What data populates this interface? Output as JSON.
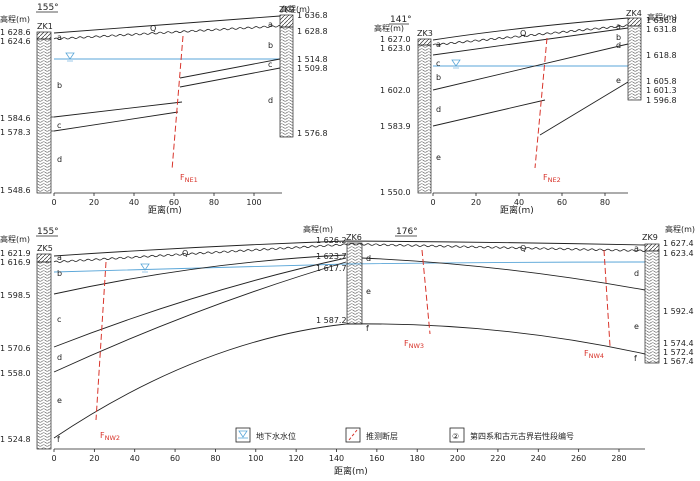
{
  "legend": {
    "water_level": "地下水水位",
    "fault": "推测断层",
    "layer_code_symbol": "②",
    "layer_code": "第四系和古元古界岩性段编号"
  },
  "sections": [
    {
      "id": "A",
      "direction": "155°",
      "ylabel": "高程(m)",
      "xlabel": "距离(m)",
      "xticks": [
        "0",
        "20",
        "40",
        "60",
        "80",
        "100"
      ],
      "boreholes": [
        {
          "name": "ZK1",
          "labels": [
            "1 628.6",
            "1 624.6",
            "1 584.6",
            "1 578.3",
            "1 548.6"
          ]
        },
        {
          "name": "ZK2",
          "labels": [
            "1 636.8",
            "1 628.8",
            "1 514.8",
            "1 509.8",
            "1 576.8"
          ]
        }
      ],
      "layers_left": [
        "a",
        "b",
        "c",
        "d"
      ],
      "layers_right": [
        "a",
        "b",
        "c",
        "d"
      ],
      "q_label": "Q",
      "fault": {
        "main": "F",
        "sub": "NE1"
      }
    },
    {
      "id": "B",
      "direction": "141°",
      "ylabel": "高程(m)",
      "xlabel": "距离(m)",
      "xticks": [
        "0",
        "20",
        "40",
        "60",
        "80"
      ],
      "boreholes": [
        {
          "name": "ZK3",
          "labels": [
            "1 627.0",
            "1 623.0",
            "1 602.0",
            "1 583.9",
            "1 550.0"
          ]
        },
        {
          "name": "ZK4",
          "labels": [
            "1 636.8",
            "1 631.8",
            "1 618.8",
            "1 605.8",
            "1 601.3",
            "1 596.8"
          ]
        }
      ],
      "layers_left": [
        "a",
        "c",
        "b",
        "d",
        "e"
      ],
      "layers_right": [
        "a",
        "b",
        "d",
        "e"
      ],
      "q_label": "Q",
      "fault": {
        "main": "F",
        "sub": "NE2"
      }
    },
    {
      "id": "C",
      "direction1": "155°",
      "direction2": "176°",
      "ylabel": "高程(m)",
      "xlabel": "距离(m)",
      "xticks": [
        "0",
        "20",
        "40",
        "60",
        "80",
        "100",
        "120",
        "140",
        "160",
        "180",
        "200",
        "220",
        "240",
        "260",
        "280"
      ],
      "boreholes": [
        {
          "name": "ZK5",
          "labels": [
            "1 621.9",
            "1 616.9",
            "1 598.5",
            "1 570.6",
            "1 558.0",
            "1 524.8"
          ]
        },
        {
          "name": "ZK6",
          "labels": [
            "1 626.2",
            "1 623.7",
            "1 617.7",
            "1 587.2"
          ]
        },
        {
          "name": "ZK9",
          "labels": [
            "1 627.4",
            "1 623.4",
            "1 592.4",
            "1 574.4",
            "1 572.4",
            "1 567.4"
          ]
        }
      ],
      "layers_zk5": [
        "a",
        "b",
        "c",
        "d",
        "e",
        "f"
      ],
      "layers_zk6": [
        "d",
        "e",
        "f"
      ],
      "layers_zk9": [
        "a",
        "d",
        "e",
        "f"
      ],
      "q_labels": [
        "Q",
        "Q"
      ],
      "faults": [
        {
          "main": "F",
          "sub": "NW2"
        },
        {
          "main": "F",
          "sub": "NW3"
        },
        {
          "main": "F",
          "sub": "NW4"
        }
      ]
    }
  ],
  "colors": {
    "water": "#5aa6d8",
    "fault": "#d8342b",
    "line": "#222222",
    "hatch": "#555555"
  }
}
